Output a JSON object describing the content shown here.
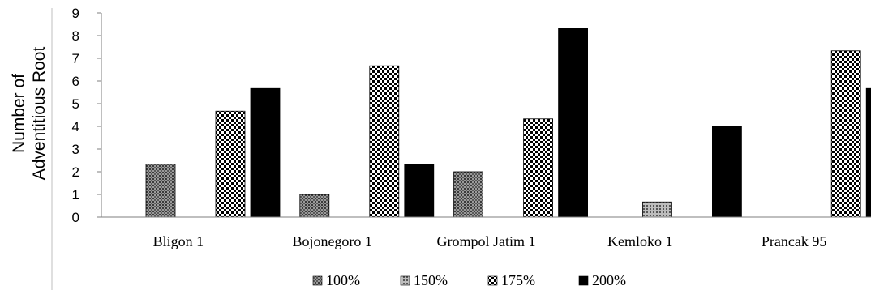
{
  "chart_data": {
    "type": "bar",
    "title": "",
    "xlabel": "",
    "ylabel_lines": [
      "Number of",
      "Adventitious Root"
    ],
    "ylim": [
      0,
      9
    ],
    "yticks": [
      "0",
      "1",
      "2",
      "3",
      "4",
      "5",
      "6",
      "7",
      "8",
      "9"
    ],
    "categories": [
      "Bligon 1",
      "Bojonegoro 1",
      "Grompol Jatim 1",
      "Kemloko 1",
      "Prancak 95"
    ],
    "series": [
      {
        "name": "100%",
        "values": [
          2.33,
          1.0,
          2.0,
          0.0,
          0.0
        ],
        "pattern": "dots",
        "color": "#666666"
      },
      {
        "name": "150%",
        "values": [
          0.0,
          0.0,
          0.0,
          0.67,
          0.0
        ],
        "pattern": "dots",
        "color": "#888888"
      },
      {
        "name": "175%",
        "values": [
          4.67,
          6.67,
          4.33,
          0.0,
          7.33
        ],
        "pattern": "checker",
        "color": "#000000"
      },
      {
        "name": "200%",
        "values": [
          5.67,
          2.33,
          8.33,
          4.0,
          5.67
        ],
        "pattern": "solid",
        "color": "#000000"
      }
    ],
    "grid": false,
    "legend_position": "bottom"
  }
}
